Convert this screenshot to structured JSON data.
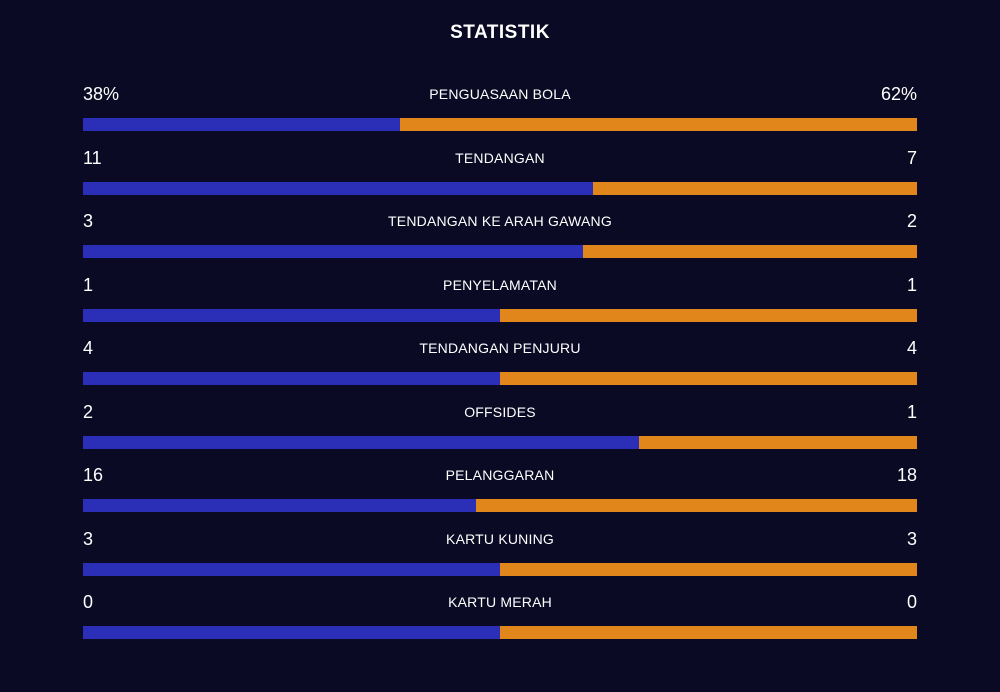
{
  "title": "STATISTIK",
  "colors": {
    "background": "#0a0a24",
    "home": "#2b2fb8",
    "away": "#e0861a",
    "text": "#ffffff"
  },
  "stats": [
    {
      "label": "PENGUASAAN BOLA",
      "home": "38%",
      "away": "62%",
      "home_share": 0.38
    },
    {
      "label": "TENDANGAN",
      "home": "11",
      "away": "7",
      "home_share": 0.611
    },
    {
      "label": "TENDANGAN KE ARAH GAWANG",
      "home": "3",
      "away": "2",
      "home_share": 0.6
    },
    {
      "label": "PENYELAMATAN",
      "home": "1",
      "away": "1",
      "home_share": 0.5
    },
    {
      "label": "TENDANGAN PENJURU",
      "home": "4",
      "away": "4",
      "home_share": 0.5
    },
    {
      "label": "OFFSIDES",
      "home": "2",
      "away": "1",
      "home_share": 0.667
    },
    {
      "label": "PELANGGARAN",
      "home": "16",
      "away": "18",
      "home_share": 0.471
    },
    {
      "label": "KARTU KUNING",
      "home": "3",
      "away": "3",
      "home_share": 0.5
    },
    {
      "label": "KARTU MERAH",
      "home": "0",
      "away": "0",
      "home_share": 0.5
    }
  ]
}
